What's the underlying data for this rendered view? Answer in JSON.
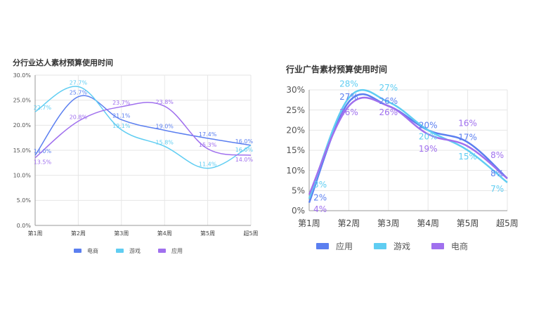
{
  "chart_data": [
    {
      "type": "line",
      "title": "分行业达人素材预算使用时间",
      "categories": [
        "第1周",
        "第2周",
        "第3周",
        "第4周",
        "第5周",
        "超5周"
      ],
      "ylim": [
        0,
        30
      ],
      "yticks": [
        "0.0%",
        "5.0%",
        "10.0%",
        "15.0%",
        "20.0%",
        "25.0%",
        "30.0%"
      ],
      "grid": true,
      "legend": "bottom",
      "series": [
        {
          "name": "电商",
          "color": "#5b7ff0",
          "values": [
            14.0,
            25.7,
            21.1,
            19.0,
            17.4,
            16.0
          ],
          "labels": [
            "14.0%",
            "25.7%",
            "21.1%",
            "19.0%",
            "17.4%",
            "16.0%"
          ]
        },
        {
          "name": "游戏",
          "color": "#5fcdf2",
          "values": [
            22.7,
            27.7,
            19.1,
            15.8,
            11.4,
            16.0
          ],
          "labels": [
            "22.7%",
            "27.7%",
            "19.1%",
            "15.8%",
            "11.4%",
            "16.0%"
          ]
        },
        {
          "name": "应用",
          "color": "#a070ee",
          "values": [
            13.5,
            20.8,
            23.7,
            23.8,
            15.3,
            14.0
          ],
          "labels": [
            "13.5%",
            "20.8%",
            "23.7%",
            "23.8%",
            "15.3%",
            "14.0%"
          ]
        }
      ]
    },
    {
      "type": "line",
      "title": "行业广告素材预算使用时间",
      "categories": [
        "第1周",
        "第2周",
        "第3周",
        "第4周",
        "第5周",
        "超5周"
      ],
      "ylim": [
        0,
        30
      ],
      "yticks": [
        "0%",
        "5%",
        "10%",
        "15%",
        "20%",
        "25%",
        "30%"
      ],
      "grid": true,
      "legend": "bottom",
      "series": [
        {
          "name": "应用",
          "color": "#5b7ff0",
          "values": [
            2,
            27,
            26,
            20,
            17,
            8
          ],
          "labels": [
            "2%",
            "27%",
            "26%",
            "20%",
            "17%",
            "8%"
          ]
        },
        {
          "name": "游戏",
          "color": "#5fcdf2",
          "values": [
            3,
            28,
            27,
            20,
            15,
            7
          ],
          "labels": [
            "3%",
            "28%",
            "27%",
            "20%",
            "15%",
            "7%"
          ]
        },
        {
          "name": "电商",
          "color": "#a070ee",
          "values": [
            4,
            26,
            26,
            19,
            16,
            8
          ],
          "labels": [
            "4%",
            "26%",
            "26%",
            "19%",
            "16%",
            "8%"
          ]
        }
      ]
    }
  ]
}
